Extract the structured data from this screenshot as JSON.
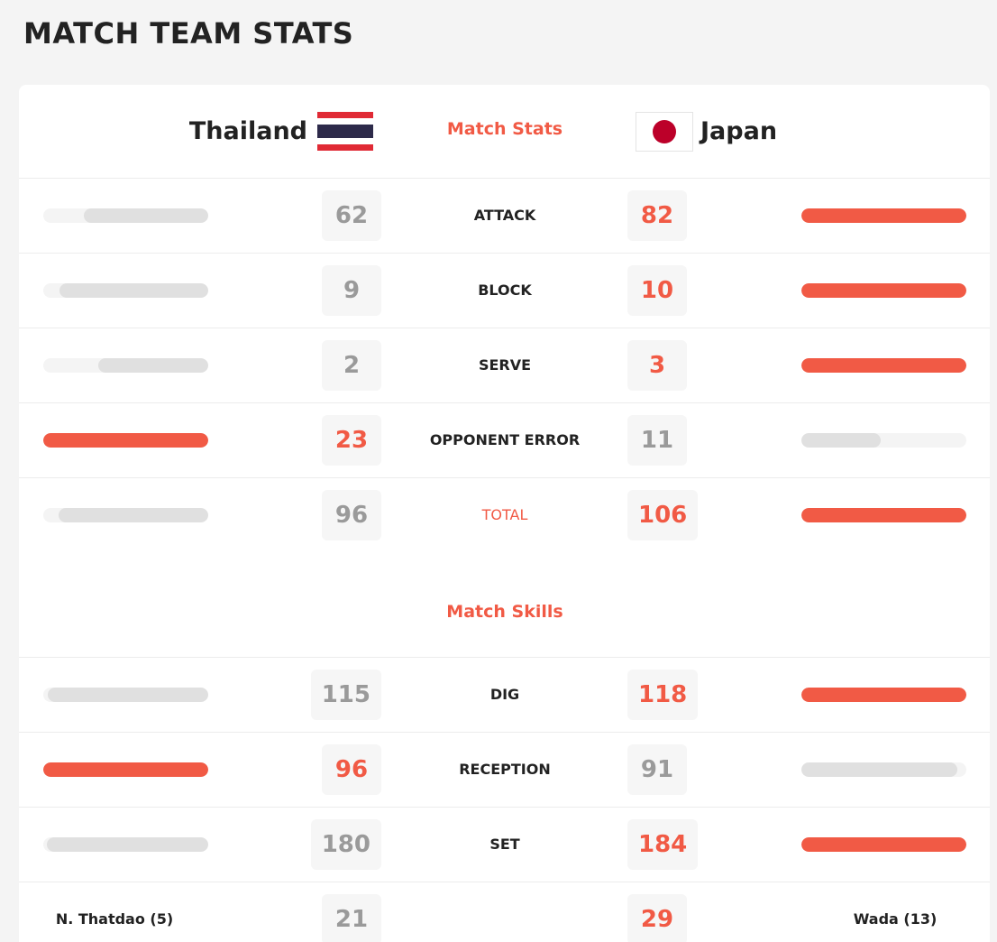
{
  "title": "MATCH TEAM STATS",
  "teams": {
    "home": "Thailand",
    "away": "Japan"
  },
  "sections": [
    {
      "title": "Match Stats",
      "rows": [
        {
          "label": "ATTACK",
          "home": 62,
          "away": 82
        },
        {
          "label": "BLOCK",
          "home": 9,
          "away": 10
        },
        {
          "label": "SERVE",
          "home": 2,
          "away": 3
        },
        {
          "label": "OPPONENT ERROR",
          "home": 23,
          "away": 11
        },
        {
          "label": "TOTAL",
          "home": 96,
          "away": 106
        }
      ]
    },
    {
      "title": "Match Skills",
      "rows": [
        {
          "label": "DIG",
          "home": 115,
          "away": 118
        },
        {
          "label": "RECEPTION",
          "home": 96,
          "away": 91
        },
        {
          "label": "SET",
          "home": 180,
          "away": 184
        }
      ]
    }
  ],
  "top_players": {
    "home_player": "N. Thatdao (5)",
    "home": 21,
    "away": 29,
    "away_player": "Wada (13)"
  }
}
